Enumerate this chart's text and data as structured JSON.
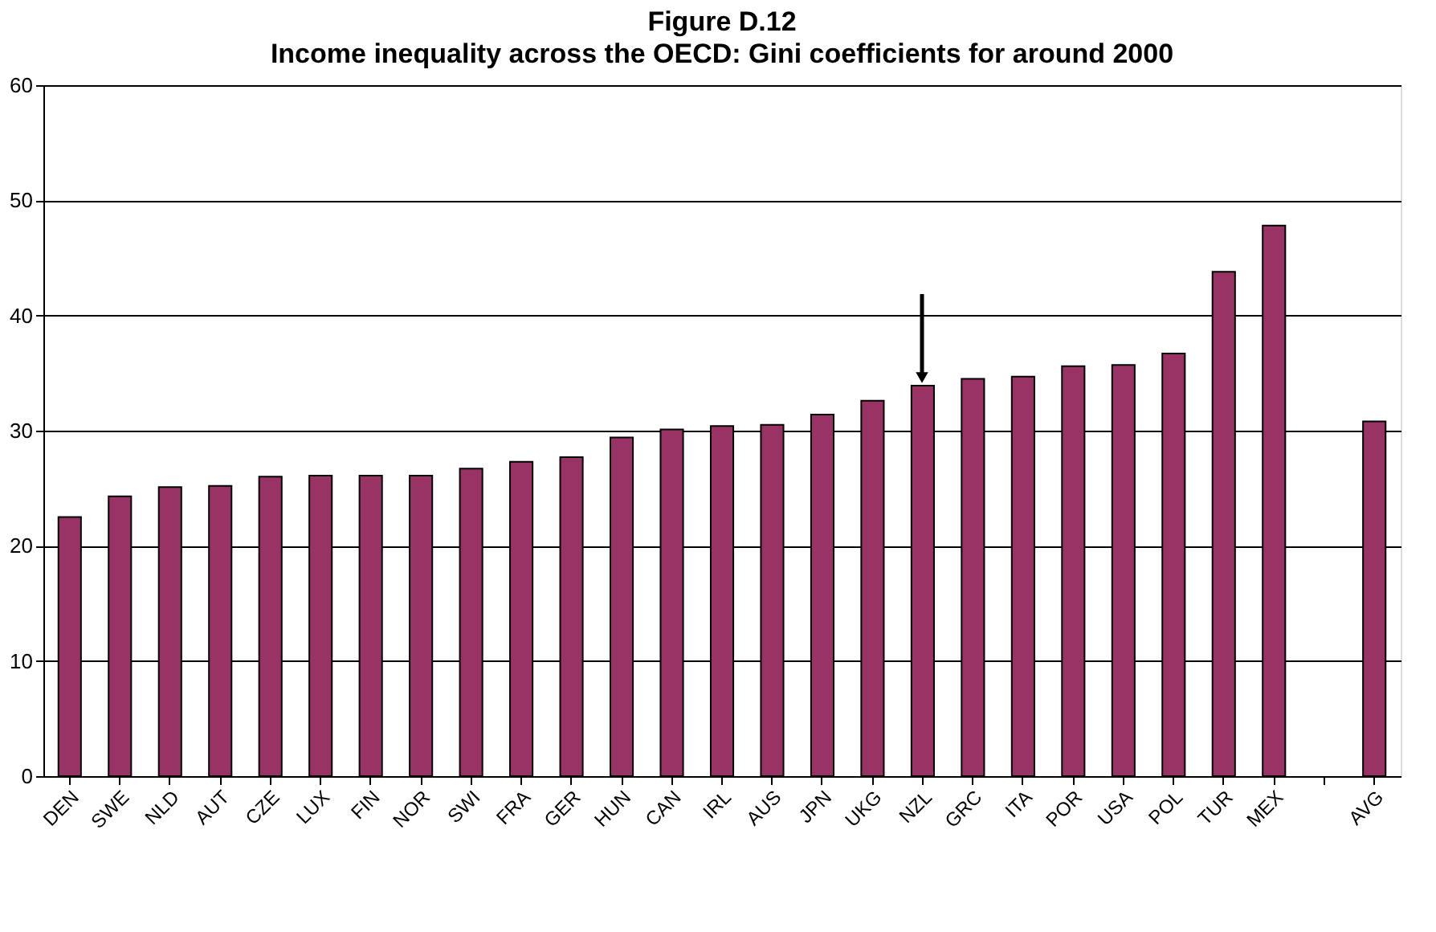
{
  "chart_data": {
    "type": "bar",
    "title": "Figure D.12",
    "subtitle": "Income inequality across the OECD: Gini coefficients for around 2000",
    "categories": [
      "DEN",
      "SWE",
      "NLD",
      "AUT",
      "CZE",
      "LUX",
      "FIN",
      "NOR",
      "SWI",
      "FRA",
      "GER",
      "HUN",
      "CAN",
      "IRL",
      "AUS",
      "JPN",
      "UKG",
      "NZL",
      "GRC",
      "ITA",
      "POR",
      "USA",
      "POL",
      "TUR",
      "MEX",
      null,
      "AVG"
    ],
    "values": [
      22.5,
      24.3,
      25.1,
      25.2,
      26.0,
      26.1,
      26.1,
      26.1,
      26.7,
      27.3,
      27.7,
      29.4,
      30.1,
      30.4,
      30.5,
      31.4,
      32.6,
      33.9,
      34.5,
      34.7,
      35.6,
      35.7,
      36.7,
      43.8,
      47.8,
      null,
      30.8
    ],
    "color": "#993366",
    "ylim": [
      0,
      60
    ],
    "yticks": [
      0,
      10,
      20,
      30,
      40,
      50,
      60
    ],
    "grid": "y"
  }
}
